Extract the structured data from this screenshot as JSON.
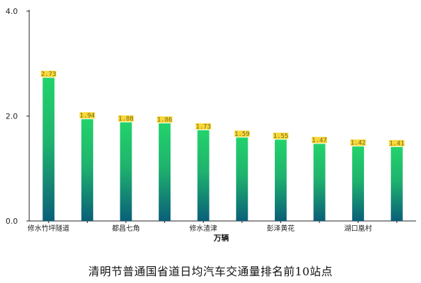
{
  "chart_data": {
    "type": "bar",
    "title": "清明节普通国省道日均汽车交通量排名前10站点",
    "xlabel": "万辆",
    "ylabel": "",
    "ylim": [
      0,
      4.0
    ],
    "yticks": [
      "0.0",
      "2.0",
      "4.0"
    ],
    "categories": [
      "修水竹坪隧道",
      "",
      "都昌七角",
      "",
      "修水渣津",
      "",
      "彭泽黄花",
      "",
      "湖口凰村",
      ""
    ],
    "values": [
      2.73,
      1.94,
      1.88,
      1.86,
      1.73,
      1.59,
      1.55,
      1.47,
      1.42,
      1.41
    ],
    "data_labels": [
      "2.73",
      "1.94",
      "1.88",
      "1.86",
      "1.73",
      "1.59",
      "1.55",
      "1.47",
      "1.42",
      "1.41"
    ],
    "grid": false,
    "colors": {
      "bar_top": "#22d36b",
      "bar_bottom": "#0a5f78",
      "label_bg": "#f7d83a",
      "axis": "#222222"
    }
  }
}
